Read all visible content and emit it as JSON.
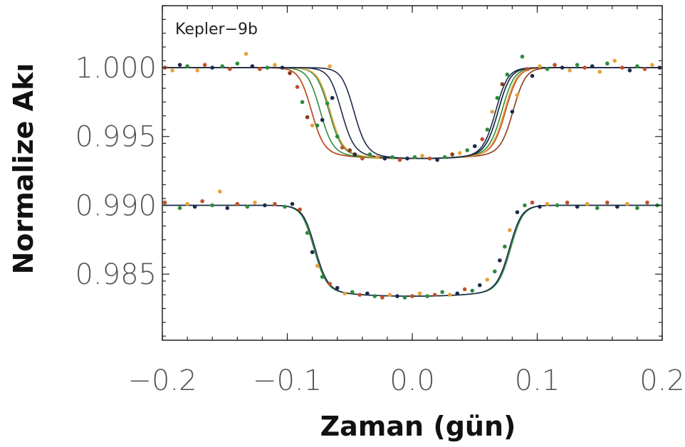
{
  "chart_data": {
    "type": "scatter",
    "title": "",
    "annotation": "Kepler−9b",
    "xlabel": "Zaman (gün)",
    "ylabel": "Normalize Akı",
    "xlim": [
      -0.2,
      0.2
    ],
    "ylim": [
      0.9802,
      1.0045
    ],
    "x_ticks": [
      -0.2,
      -0.1,
      0.0,
      0.1,
      0.2
    ],
    "x_tick_labels": [
      "−0.2",
      "−0.1",
      "0.0",
      "0.1",
      "0.2"
    ],
    "y_ticks": [
      0.985,
      0.99,
      0.995,
      1.0
    ],
    "y_tick_labels": [
      "0.985",
      "0.990",
      "0.995",
      "1.000"
    ],
    "grid": false,
    "legend": "none",
    "colors": {
      "brown": "#8B3A1A",
      "orange": "#E8A23A",
      "green": "#2E8B3C",
      "navy": "#1F2A4A",
      "red": "#C0502A"
    },
    "upper_group": {
      "baseline": 1.0,
      "depth": 0.0066,
      "models": [
        {
          "color": "brown",
          "center": 0.0,
          "half_width": 0.09
        },
        {
          "color": "red",
          "center": -0.003,
          "half_width": 0.087
        },
        {
          "color": "green",
          "center": -0.001,
          "half_width": 0.082
        },
        {
          "color": "green",
          "center": 0.001,
          "half_width": 0.077
        },
        {
          "color": "orange",
          "center": 0.004,
          "half_width": 0.079
        },
        {
          "color": "navy",
          "center": 0.006,
          "half_width": 0.072
        },
        {
          "color": "navy",
          "center": 0.01,
          "half_width": 0.066
        }
      ]
    },
    "lower_group": {
      "baseline": 0.99,
      "depth": 0.0066,
      "models": [
        {
          "color": "green",
          "center": 0.0,
          "half_width": 0.088
        },
        {
          "color": "navy",
          "center": 0.0,
          "half_width": 0.087
        }
      ]
    },
    "upper_points": [
      {
        "x": -0.198,
        "y": 1.0,
        "c": "red"
      },
      {
        "x": -0.192,
        "y": 0.9998,
        "c": "orange"
      },
      {
        "x": -0.186,
        "y": 1.0002,
        "c": "navy"
      },
      {
        "x": -0.18,
        "y": 1.0001,
        "c": "green"
      },
      {
        "x": -0.172,
        "y": 0.9998,
        "c": "orange"
      },
      {
        "x": -0.166,
        "y": 1.0002,
        "c": "red"
      },
      {
        "x": -0.16,
        "y": 1.0,
        "c": "navy"
      },
      {
        "x": -0.152,
        "y": 1.0001,
        "c": "green"
      },
      {
        "x": -0.146,
        "y": 0.9999,
        "c": "red"
      },
      {
        "x": -0.14,
        "y": 1.0003,
        "c": "green"
      },
      {
        "x": -0.133,
        "y": 1.001,
        "c": "orange"
      },
      {
        "x": -0.128,
        "y": 1.0001,
        "c": "navy"
      },
      {
        "x": -0.122,
        "y": 0.9999,
        "c": "red"
      },
      {
        "x": -0.116,
        "y": 1.0,
        "c": "green"
      },
      {
        "x": -0.11,
        "y": 1.0002,
        "c": "orange"
      },
      {
        "x": -0.104,
        "y": 1.0,
        "c": "navy"
      },
      {
        "x": -0.098,
        "y": 0.9996,
        "c": "brown"
      },
      {
        "x": -0.092,
        "y": 0.9986,
        "c": "red"
      },
      {
        "x": -0.088,
        "y": 0.9975,
        "c": "green"
      },
      {
        "x": -0.084,
        "y": 0.9964,
        "c": "brown"
      },
      {
        "x": -0.08,
        "y": 0.9958,
        "c": "orange"
      },
      {
        "x": -0.076,
        "y": 0.9958,
        "c": "green"
      },
      {
        "x": -0.072,
        "y": 0.9962,
        "c": "navy"
      },
      {
        "x": -0.068,
        "y": 0.9974,
        "c": "green"
      },
      {
        "x": -0.066,
        "y": 1.0001,
        "c": "orange"
      },
      {
        "x": -0.064,
        "y": 0.9978,
        "c": "navy"
      },
      {
        "x": -0.06,
        "y": 0.995,
        "c": "green"
      },
      {
        "x": -0.056,
        "y": 0.9942,
        "c": "red"
      },
      {
        "x": -0.05,
        "y": 0.994,
        "c": "brown"
      },
      {
        "x": -0.046,
        "y": 0.9937,
        "c": "navy"
      },
      {
        "x": -0.04,
        "y": 0.9934,
        "c": "red"
      },
      {
        "x": -0.034,
        "y": 0.9937,
        "c": "green"
      },
      {
        "x": -0.028,
        "y": 0.9935,
        "c": "orange"
      },
      {
        "x": -0.022,
        "y": 0.9934,
        "c": "navy"
      },
      {
        "x": -0.016,
        "y": 0.9935,
        "c": "green"
      },
      {
        "x": -0.01,
        "y": 0.9933,
        "c": "red"
      },
      {
        "x": -0.004,
        "y": 0.9934,
        "c": "navy"
      },
      {
        "x": 0.002,
        "y": 0.9935,
        "c": "green"
      },
      {
        "x": 0.008,
        "y": 0.9936,
        "c": "orange"
      },
      {
        "x": 0.014,
        "y": 0.9934,
        "c": "red"
      },
      {
        "x": 0.02,
        "y": 0.9933,
        "c": "navy"
      },
      {
        "x": 0.026,
        "y": 0.9935,
        "c": "green"
      },
      {
        "x": 0.032,
        "y": 0.9937,
        "c": "brown"
      },
      {
        "x": 0.038,
        "y": 0.9938,
        "c": "orange"
      },
      {
        "x": 0.044,
        "y": 0.994,
        "c": "green"
      },
      {
        "x": 0.05,
        "y": 0.9943,
        "c": "navy"
      },
      {
        "x": 0.056,
        "y": 0.9948,
        "c": "red"
      },
      {
        "x": 0.06,
        "y": 0.9955,
        "c": "green"
      },
      {
        "x": 0.064,
        "y": 0.9968,
        "c": "orange"
      },
      {
        "x": 0.068,
        "y": 0.9978,
        "c": "green"
      },
      {
        "x": 0.072,
        "y": 0.9988,
        "c": "brown"
      },
      {
        "x": 0.076,
        "y": 0.9995,
        "c": "green"
      },
      {
        "x": 0.08,
        "y": 0.9968,
        "c": "navy"
      },
      {
        "x": 0.084,
        "y": 0.998,
        "c": "orange"
      },
      {
        "x": 0.088,
        "y": 1.0008,
        "c": "green"
      },
      {
        "x": 0.092,
        "y": 0.9999,
        "c": "red"
      },
      {
        "x": 0.096,
        "y": 0.9994,
        "c": "navy"
      },
      {
        "x": 0.102,
        "y": 1.0001,
        "c": "orange"
      },
      {
        "x": 0.108,
        "y": 0.9999,
        "c": "green"
      },
      {
        "x": 0.114,
        "y": 1.0002,
        "c": "red"
      },
      {
        "x": 0.12,
        "y": 1.0,
        "c": "navy"
      },
      {
        "x": 0.126,
        "y": 0.9998,
        "c": "orange"
      },
      {
        "x": 0.132,
        "y": 1.0002,
        "c": "green"
      },
      {
        "x": 0.138,
        "y": 1.0,
        "c": "red"
      },
      {
        "x": 0.144,
        "y": 1.0001,
        "c": "navy"
      },
      {
        "x": 0.15,
        "y": 0.9997,
        "c": "orange"
      },
      {
        "x": 0.156,
        "y": 1.0003,
        "c": "green"
      },
      {
        "x": 0.162,
        "y": 1.0005,
        "c": "orange"
      },
      {
        "x": 0.168,
        "y": 1.0,
        "c": "red"
      },
      {
        "x": 0.174,
        "y": 0.9998,
        "c": "navy"
      },
      {
        "x": 0.18,
        "y": 1.0001,
        "c": "green"
      },
      {
        "x": 0.186,
        "y": 0.9999,
        "c": "red"
      },
      {
        "x": 0.192,
        "y": 1.0002,
        "c": "orange"
      },
      {
        "x": 0.198,
        "y": 1.0,
        "c": "navy"
      }
    ],
    "lower_points": [
      {
        "x": -0.198,
        "y": 0.9902,
        "c": "red"
      },
      {
        "x": -0.192,
        "y": 0.9998,
        "c": "none"
      },
      {
        "x": -0.186,
        "y": 0.9898,
        "c": "green"
      },
      {
        "x": -0.18,
        "y": 0.9901,
        "c": "orange"
      },
      {
        "x": -0.174,
        "y": 0.9899,
        "c": "navy"
      },
      {
        "x": -0.168,
        "y": 0.9903,
        "c": "red"
      },
      {
        "x": -0.16,
        "y": 0.99,
        "c": "green"
      },
      {
        "x": -0.154,
        "y": 0.991,
        "c": "orange"
      },
      {
        "x": -0.148,
        "y": 0.9898,
        "c": "navy"
      },
      {
        "x": -0.14,
        "y": 0.9901,
        "c": "red"
      },
      {
        "x": -0.132,
        "y": 0.9899,
        "c": "green"
      },
      {
        "x": -0.126,
        "y": 0.9902,
        "c": "orange"
      },
      {
        "x": -0.118,
        "y": 0.99,
        "c": "navy"
      },
      {
        "x": -0.11,
        "y": 0.9901,
        "c": "red"
      },
      {
        "x": -0.102,
        "y": 0.9899,
        "c": "green"
      },
      {
        "x": -0.096,
        "y": 0.9901,
        "c": "navy"
      },
      {
        "x": -0.09,
        "y": 0.9897,
        "c": "red"
      },
      {
        "x": -0.084,
        "y": 0.988,
        "c": "green"
      },
      {
        "x": -0.08,
        "y": 0.9866,
        "c": "navy"
      },
      {
        "x": -0.076,
        "y": 0.9856,
        "c": "orange"
      },
      {
        "x": -0.072,
        "y": 0.9848,
        "c": "green"
      },
      {
        "x": -0.066,
        "y": 0.9843,
        "c": "red"
      },
      {
        "x": -0.06,
        "y": 0.984,
        "c": "navy"
      },
      {
        "x": -0.054,
        "y": 0.9836,
        "c": "orange"
      },
      {
        "x": -0.048,
        "y": 0.9837,
        "c": "green"
      },
      {
        "x": -0.042,
        "y": 0.9835,
        "c": "red"
      },
      {
        "x": -0.036,
        "y": 0.9836,
        "c": "navy"
      },
      {
        "x": -0.03,
        "y": 0.9834,
        "c": "green"
      },
      {
        "x": -0.024,
        "y": 0.9833,
        "c": "red"
      },
      {
        "x": -0.018,
        "y": 0.9835,
        "c": "orange"
      },
      {
        "x": -0.012,
        "y": 0.9834,
        "c": "navy"
      },
      {
        "x": -0.006,
        "y": 0.9833,
        "c": "green"
      },
      {
        "x": 0.0,
        "y": 0.9834,
        "c": "red"
      },
      {
        "x": 0.006,
        "y": 0.9836,
        "c": "orange"
      },
      {
        "x": 0.012,
        "y": 0.9834,
        "c": "green"
      },
      {
        "x": 0.018,
        "y": 0.9835,
        "c": "red"
      },
      {
        "x": 0.024,
        "y": 0.9837,
        "c": "green"
      },
      {
        "x": 0.03,
        "y": 0.9835,
        "c": "orange"
      },
      {
        "x": 0.036,
        "y": 0.9836,
        "c": "navy"
      },
      {
        "x": 0.042,
        "y": 0.9839,
        "c": "red"
      },
      {
        "x": 0.048,
        "y": 0.9838,
        "c": "green"
      },
      {
        "x": 0.054,
        "y": 0.9842,
        "c": "navy"
      },
      {
        "x": 0.06,
        "y": 0.9846,
        "c": "orange"
      },
      {
        "x": 0.066,
        "y": 0.9852,
        "c": "green"
      },
      {
        "x": 0.07,
        "y": 0.986,
        "c": "navy"
      },
      {
        "x": 0.074,
        "y": 0.987,
        "c": "green"
      },
      {
        "x": 0.078,
        "y": 0.9882,
        "c": "orange"
      },
      {
        "x": 0.084,
        "y": 0.9895,
        "c": "navy"
      },
      {
        "x": 0.09,
        "y": 0.99,
        "c": "green"
      },
      {
        "x": 0.096,
        "y": 0.9902,
        "c": "red"
      },
      {
        "x": 0.102,
        "y": 0.9899,
        "c": "navy"
      },
      {
        "x": 0.108,
        "y": 0.9901,
        "c": "orange"
      },
      {
        "x": 0.116,
        "y": 0.99,
        "c": "green"
      },
      {
        "x": 0.124,
        "y": 0.9902,
        "c": "red"
      },
      {
        "x": 0.132,
        "y": 0.9899,
        "c": "navy"
      },
      {
        "x": 0.14,
        "y": 0.9901,
        "c": "orange"
      },
      {
        "x": 0.148,
        "y": 0.9898,
        "c": "green"
      },
      {
        "x": 0.156,
        "y": 0.9902,
        "c": "red"
      },
      {
        "x": 0.164,
        "y": 0.9899,
        "c": "navy"
      },
      {
        "x": 0.172,
        "y": 0.9901,
        "c": "orange"
      },
      {
        "x": 0.18,
        "y": 0.9898,
        "c": "green"
      },
      {
        "x": 0.188,
        "y": 0.9902,
        "c": "red"
      },
      {
        "x": 0.196,
        "y": 0.99,
        "c": "green"
      }
    ]
  }
}
